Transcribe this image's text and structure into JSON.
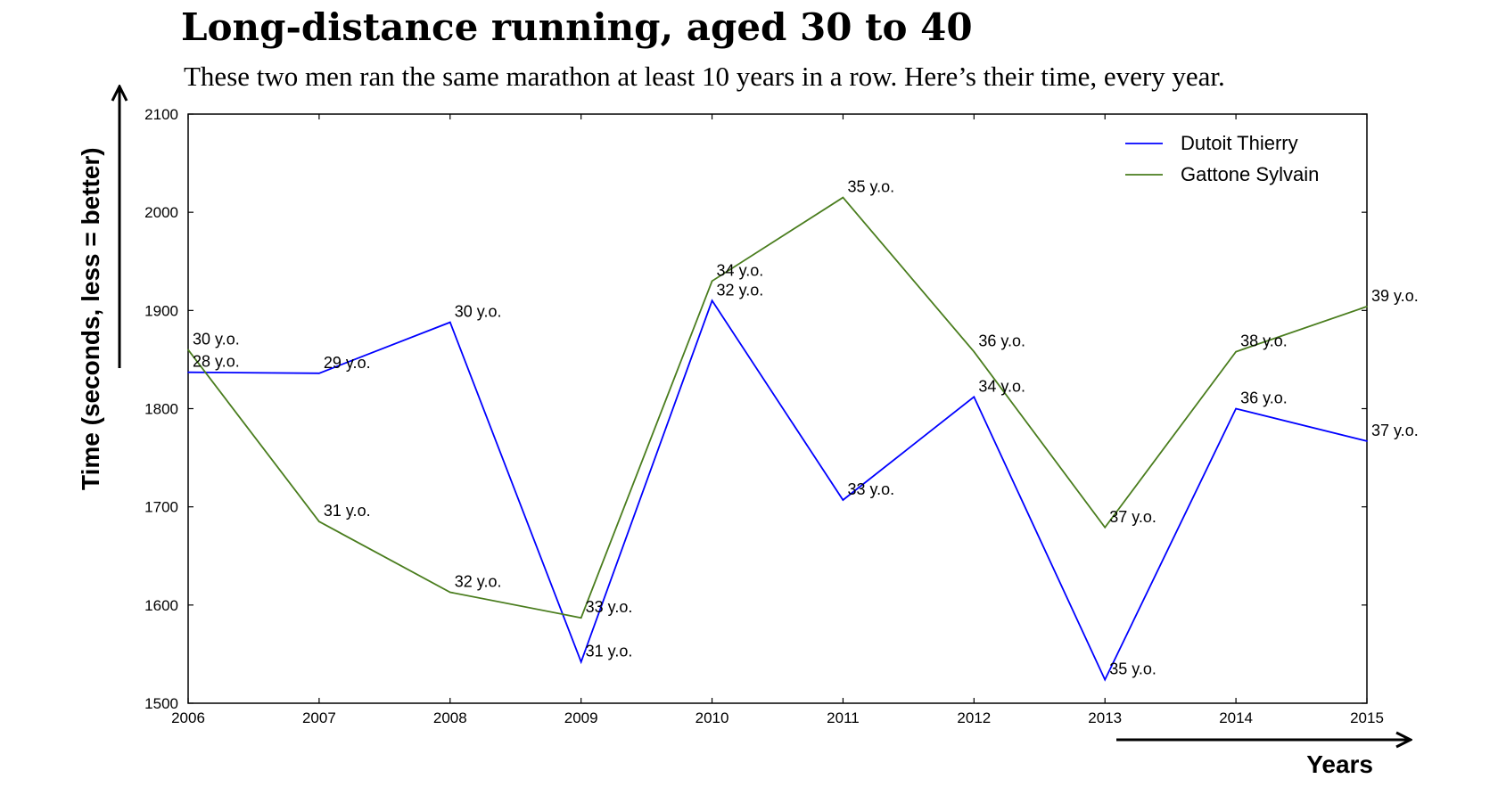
{
  "chart_data": {
    "type": "line",
    "title": "Long-distance running, aged 30 to 40",
    "subtitle": "These two men ran the same marathon at least 10 years in a row. Here’s their time, every year.",
    "xlabel": "Years",
    "ylabel": "Time (seconds, less = better)",
    "x": [
      2006,
      2007,
      2008,
      2009,
      2010,
      2011,
      2012,
      2013,
      2014,
      2015
    ],
    "xlim": [
      2006,
      2015
    ],
    "ylim": [
      1500,
      2100
    ],
    "yticks": [
      1500,
      1600,
      1700,
      1800,
      1900,
      2000,
      2100
    ],
    "xticks": [
      2006,
      2007,
      2008,
      2009,
      2010,
      2011,
      2012,
      2013,
      2014,
      2015
    ],
    "grid": false,
    "legend_position": "top-right",
    "series": [
      {
        "name": "Dutoit Thierry",
        "color": "#0000ff",
        "points": [
          {
            "x": 2006,
            "y": 1837,
            "label": "28 y.o."
          },
          {
            "x": 2007,
            "y": 1836,
            "label": "29 y.o."
          },
          {
            "x": 2008,
            "y": 1888,
            "label": "30 y.o."
          },
          {
            "x": 2009,
            "y": 1542,
            "label": "31 y.o."
          },
          {
            "x": 2010,
            "y": 1910,
            "label": "32 y.o."
          },
          {
            "x": 2011,
            "y": 1707,
            "label": "33 y.o."
          },
          {
            "x": 2012,
            "y": 1812,
            "label": "34 y.o."
          },
          {
            "x": 2013,
            "y": 1524,
            "label": "35 y.o."
          },
          {
            "x": 2014,
            "y": 1800,
            "label": "36 y.o."
          },
          {
            "x": 2015,
            "y": 1767,
            "label": "37 y.o."
          }
        ]
      },
      {
        "name": "Gattone Sylvain",
        "color": "#4a7d1e",
        "points": [
          {
            "x": 2006,
            "y": 1860,
            "label": "30 y.o."
          },
          {
            "x": 2007,
            "y": 1685,
            "label": "31 y.o."
          },
          {
            "x": 2008,
            "y": 1613,
            "label": "32 y.o."
          },
          {
            "x": 2009,
            "y": 1587,
            "label": "33 y.o."
          },
          {
            "x": 2010,
            "y": 1930,
            "label": "34 y.o."
          },
          {
            "x": 2011,
            "y": 2015,
            "label": "35 y.o."
          },
          {
            "x": 2012,
            "y": 1858,
            "label": "36 y.o."
          },
          {
            "x": 2013,
            "y": 1679,
            "label": "37 y.o."
          },
          {
            "x": 2014,
            "y": 1858,
            "label": "38 y.o."
          },
          {
            "x": 2015,
            "y": 1904,
            "label": "39 y.o."
          }
        ]
      }
    ]
  }
}
